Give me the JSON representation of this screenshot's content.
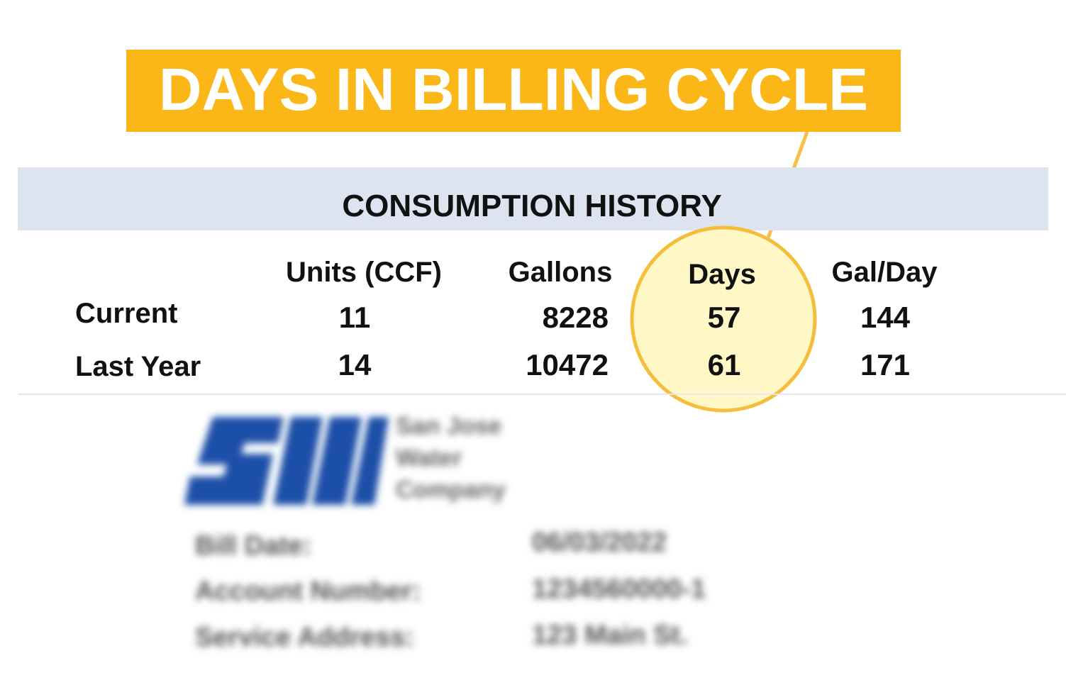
{
  "callout": {
    "title": "DAYS IN BILLING CYCLE"
  },
  "section": {
    "title": "CONSUMPTION HISTORY"
  },
  "table": {
    "columns": [
      "Units (CCF)",
      "Gallons",
      "Days",
      "Gal/Day"
    ],
    "rows": [
      {
        "label": "Current",
        "cells": [
          11,
          8228,
          57,
          144
        ]
      },
      {
        "label": "Last Year",
        "cells": [
          14,
          10472,
          61,
          171
        ]
      }
    ]
  },
  "company": {
    "name_lines": [
      "San Jose",
      "Water",
      "Company"
    ]
  },
  "bill_info": [
    {
      "label": "Bill Date:",
      "value": "06/03/2022"
    },
    {
      "label": "Account Number:",
      "value": "1234560000-1"
    },
    {
      "label": "Service Address:",
      "value": "123 Main St."
    }
  ]
}
